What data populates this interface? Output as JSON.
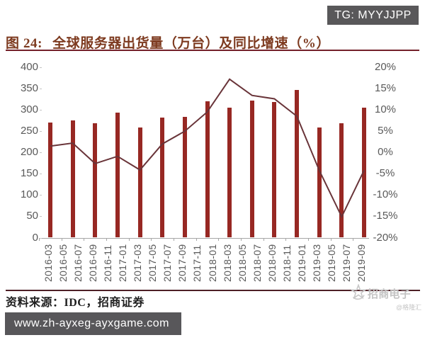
{
  "header": {
    "tg_badge": "TG: MYYJJPP"
  },
  "title": {
    "label": "图 24:",
    "text": "全球服务器出货量（万台）及同比增速（%）"
  },
  "chart_data": {
    "type": "bar+line",
    "title": "全球服务器出货量（万台）及同比增速（%）",
    "x_tick_labels": [
      "2016-03",
      "2016-05",
      "2016-07",
      "2016-09",
      "2016-11",
      "2017-01",
      "2017-03",
      "2017-05",
      "2017-07",
      "2017-09",
      "2017-11",
      "2018-01",
      "2018-03",
      "2018-05",
      "2018-07",
      "2018-09",
      "2018-11",
      "2019-01",
      "2019-03",
      "2019-05",
      "2019-07",
      "2019-09"
    ],
    "series": [
      {
        "name": "全球服务器出货量（万台）",
        "type": "bar",
        "axis": "left",
        "values": [
          271,
          276,
          269,
          294,
          259,
          282,
          283,
          320,
          305,
          321,
          319,
          347,
          258,
          268,
          306
        ]
      },
      {
        "name": "同比增速（%）",
        "type": "line",
        "axis": "right",
        "values": [
          1.5,
          2.2,
          -2.6,
          -0.9,
          -4.1,
          2.0,
          5.0,
          9.5,
          17.2,
          13.4,
          12.6,
          8.5,
          -4.2,
          -15.1,
          -4.2
        ]
      }
    ],
    "left_axis": {
      "ticks": [
        "400",
        "350",
        "300",
        "250",
        "200",
        "150",
        "100",
        "50",
        "0"
      ],
      "range": [
        0,
        400
      ]
    },
    "right_axis": {
      "ticks": [
        "20%",
        "15%",
        "10%",
        "5%",
        "0%",
        "-5%",
        "-10%",
        "-15%",
        "-20%"
      ],
      "range": [
        -20,
        20
      ]
    },
    "grid": false,
    "legend": false,
    "colors": {
      "bar": "#972823",
      "line": "#693439"
    }
  },
  "footer": {
    "source": "资料来源：IDC，招商证券",
    "watermark": "招商电子",
    "watermark_badge": "@格隆汇",
    "url_bar": "www.zh-ayxeg-ayxgame.com"
  }
}
